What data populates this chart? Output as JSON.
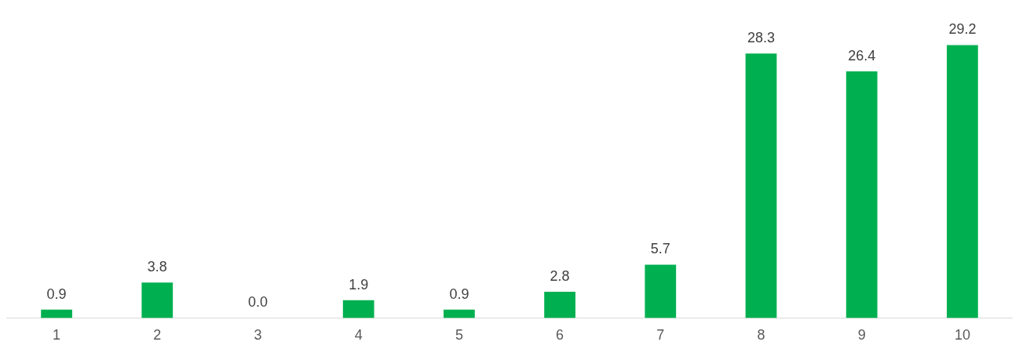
{
  "chart_data": {
    "type": "bar",
    "categories": [
      "1",
      "2",
      "3",
      "4",
      "5",
      "6",
      "7",
      "8",
      "9",
      "10"
    ],
    "values": [
      0.9,
      3.8,
      0.0,
      1.9,
      0.9,
      2.8,
      5.7,
      28.3,
      26.4,
      29.2
    ],
    "value_labels": [
      "0.9",
      "3.8",
      "0.0",
      "1.9",
      "0.9",
      "2.8",
      "5.7",
      "28.3",
      "26.4",
      "29.2"
    ],
    "color": "#00b050",
    "grid": false,
    "legend": false
  }
}
